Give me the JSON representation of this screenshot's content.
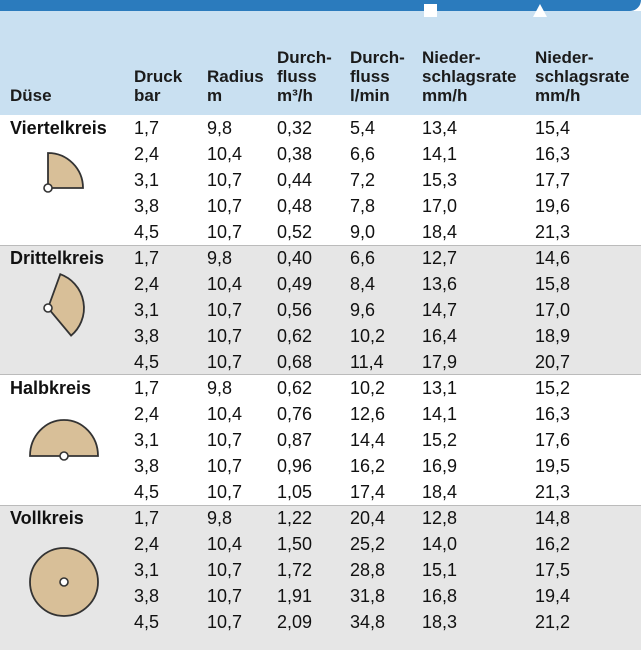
{
  "table": {
    "headers": [
      [
        "Düse"
      ],
      [
        "Druck",
        "bar"
      ],
      [
        "Radius",
        "m"
      ],
      [
        "Durch-",
        "fluss",
        "m³/h"
      ],
      [
        "Durch-",
        "fluss",
        "l/min"
      ],
      [
        "Nieder-",
        "schlagsrate",
        "mm/h"
      ],
      [
        "Nieder-",
        "schlagsrate",
        "mm/h"
      ]
    ],
    "groups": [
      {
        "label": "Viertelkreis",
        "rows": [
          [
            "1,7",
            "9,8",
            "0,32",
            "5,4",
            "13,4",
            "15,4"
          ],
          [
            "2,4",
            "10,4",
            "0,38",
            "6,6",
            "14,1",
            "16,3"
          ],
          [
            "3,1",
            "10,7",
            "0,44",
            "7,2",
            "15,3",
            "17,7"
          ],
          [
            "3,8",
            "10,7",
            "0,48",
            "7,8",
            "17,0",
            "19,6"
          ],
          [
            "4,5",
            "10,7",
            "0,52",
            "9,0",
            "18,4",
            "21,3"
          ]
        ]
      },
      {
        "label": "Drittelkreis",
        "rows": [
          [
            "1,7",
            "9,8",
            "0,40",
            "6,6",
            "12,7",
            "14,6"
          ],
          [
            "2,4",
            "10,4",
            "0,49",
            "8,4",
            "13,6",
            "15,8"
          ],
          [
            "3,1",
            "10,7",
            "0,56",
            "9,6",
            "14,7",
            "17,0"
          ],
          [
            "3,8",
            "10,7",
            "0,62",
            "10,2",
            "16,4",
            "18,9"
          ],
          [
            "4,5",
            "10,7",
            "0,68",
            "11,4",
            "17,9",
            "20,7"
          ]
        ]
      },
      {
        "label": "Halbkreis",
        "rows": [
          [
            "1,7",
            "9,8",
            "0,62",
            "10,2",
            "13,1",
            "15,2"
          ],
          [
            "2,4",
            "10,4",
            "0,76",
            "12,6",
            "14,1",
            "16,3"
          ],
          [
            "3,1",
            "10,7",
            "0,87",
            "14,4",
            "15,2",
            "17,6"
          ],
          [
            "3,8",
            "10,7",
            "0,96",
            "16,2",
            "16,9",
            "19,5"
          ],
          [
            "4,5",
            "10,7",
            "1,05",
            "17,4",
            "18,4",
            "21,3"
          ]
        ]
      },
      {
        "label": "Vollkreis",
        "rows": [
          [
            "1,7",
            "9,8",
            "1,22",
            "20,4",
            "12,8",
            "14,8"
          ],
          [
            "2,4",
            "10,4",
            "1,50",
            "25,2",
            "14,0",
            "16,2"
          ],
          [
            "3,1",
            "10,7",
            "1,72",
            "28,8",
            "15,1",
            "17,5"
          ],
          [
            "3,8",
            "10,7",
            "1,91",
            "31,8",
            "16,8",
            "19,4"
          ],
          [
            "4,5",
            "10,7",
            "2,09",
            "34,8",
            "18,3",
            "21,2"
          ]
        ]
      }
    ]
  }
}
